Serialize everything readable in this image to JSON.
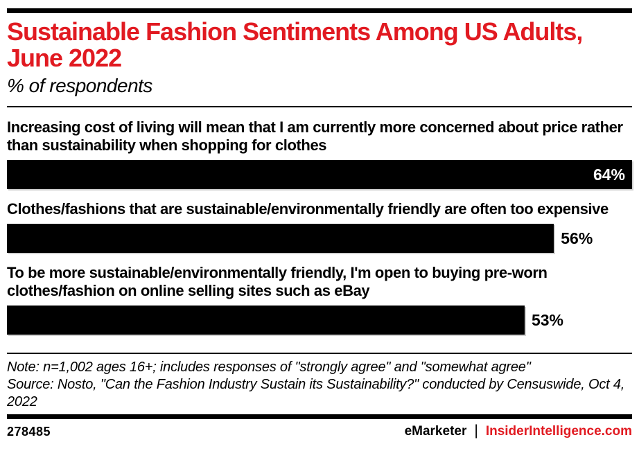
{
  "header": {
    "title": "Sustainable Fashion Sentiments Among US Adults, June 2022",
    "title_lines": [
      "Sustainable Fashion Sentiments Among US Adults,",
      "June 2022"
    ],
    "subtitle": "% of respondents"
  },
  "chart_data": {
    "type": "bar",
    "orientation": "horizontal",
    "title": "Sustainable Fashion Sentiments Among US Adults, June 2022",
    "subtitle": "% of respondents",
    "unit": "%",
    "xlim": [
      0,
      64
    ],
    "grid": false,
    "legend": "none",
    "bar_color": "#000000",
    "categories": [
      "Increasing cost of living will mean that I am currently more concerned about price rather than sustainability when shopping for clothes",
      "Clothes/fashions that are sustainable/environmentally friendly are often too expensive",
      "To be more sustainable/environmentally friendly, I'm open to buying pre-worn clothes/fashion on online selling sites such as eBay"
    ],
    "values": [
      64,
      56,
      53
    ],
    "items": [
      {
        "label": "Increasing cost of living will mean that I am currently more concerned about price rather than sustainability when shopping for clothes",
        "value": 64,
        "display": "64%",
        "value_label_position": "inside"
      },
      {
        "label": "Clothes/fashions that are sustainable/environmentally friendly are often too expensive",
        "value": 56,
        "display": "56%",
        "value_label_position": "outside"
      },
      {
        "label": "To be more sustainable/environmentally friendly, I'm open to buying pre-worn clothes/fashion on online selling sites such as eBay",
        "value": 53,
        "display": "53%",
        "value_label_position": "outside"
      }
    ]
  },
  "footnote": {
    "note": "Note: n=1,002 ages 16+; includes responses of \"strongly agree\" and \"somewhat agree\"",
    "source": "Source: Nosto, \"Can the Fashion Industry Sustain its Sustainability?\" conducted by Censuswide, Oct 4, 2022"
  },
  "footer": {
    "chart_id": "278485",
    "brand_left": "eMarketer",
    "divider": "|",
    "brand_right": "InsiderIntelligence.com"
  },
  "colors": {
    "accent_red": "#e11a21",
    "bar_black": "#000000",
    "background": "#ffffff"
  }
}
